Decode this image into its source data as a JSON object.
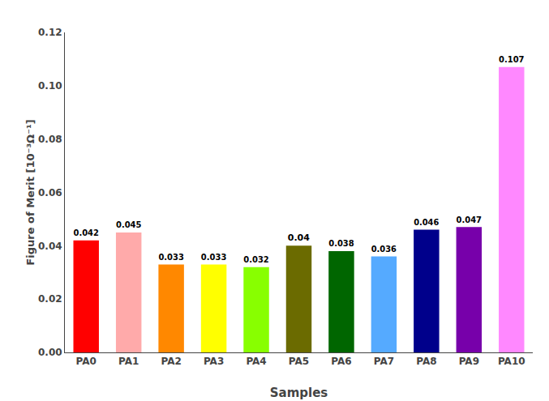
{
  "chart_data": {
    "type": "bar",
    "categories": [
      "PA0",
      "PA1",
      "PA2",
      "PA3",
      "PA4",
      "PA5",
      "PA6",
      "PA7",
      "PA8",
      "PA9",
      "PA10"
    ],
    "values": [
      0.042,
      0.045,
      0.033,
      0.033,
      0.032,
      0.04,
      0.038,
      0.036,
      0.046,
      0.047,
      0.107
    ],
    "colors": [
      "#ff0000",
      "#ffaaaa",
      "#ff8800",
      "#ffff00",
      "#88ff00",
      "#6b6b00",
      "#006600",
      "#55aaff",
      "#00008b",
      "#7700aa",
      "#ff88ff"
    ],
    "data_labels": true,
    "xlabel": "Samples",
    "ylabel": "Figure of Merit [10⁻³Ω⁻¹]",
    "ylim": [
      0.0,
      0.12
    ],
    "yticks": [
      {
        "value": 0,
        "label": "0.00"
      },
      0.02,
      0.04,
      0.06,
      0.08,
      {
        "value": 0.1,
        "label": "0.10"
      },
      0.12
    ],
    "grid": false
  }
}
